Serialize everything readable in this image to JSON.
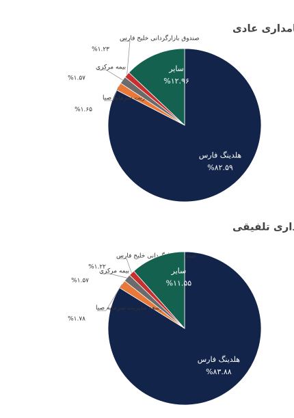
{
  "chart_data": [
    {
      "type": "pie",
      "title": "ساختار سهامداری عادی",
      "categories": [
        "هلدینگ فارس",
        "توسعه مدیریت سرمایه صبا",
        "بیمه مرکزی",
        "صندوق بازارگردانی خلیج فارس",
        "سایر"
      ],
      "values": [
        82.59,
        1.65,
        1.57,
        1.23,
        12.96
      ],
      "value_labels": [
        "%۸۲.۵۹",
        "%۱.۶۵",
        "%۱.۵۷",
        "%۱.۲۳",
        "%۱۲.۹۶"
      ],
      "colors": [
        "#13244a",
        "#e8793a",
        "#6b6b6b",
        "#c8302f",
        "#15614f"
      ]
    },
    {
      "type": "pie",
      "title": "ساختار سهامداری تلفیقی",
      "categories": [
        "هلدینگ فارس",
        "توسعه مدیریت سرمایه صبا",
        "بیمه مرکزی",
        "صندوق بازارگردانی خلیج فارس",
        "سایر"
      ],
      "values": [
        83.88,
        1.78,
        1.57,
        1.22,
        11.55
      ],
      "value_labels": [
        "%۸۳.۸۸",
        "%۱.۷۸",
        "%۱.۵۷",
        "%۱.۲۲",
        "%۱۱.۵۵"
      ],
      "colors": [
        "#13244a",
        "#e8793a",
        "#6b6b6b",
        "#c8302f",
        "#15614f"
      ]
    }
  ]
}
